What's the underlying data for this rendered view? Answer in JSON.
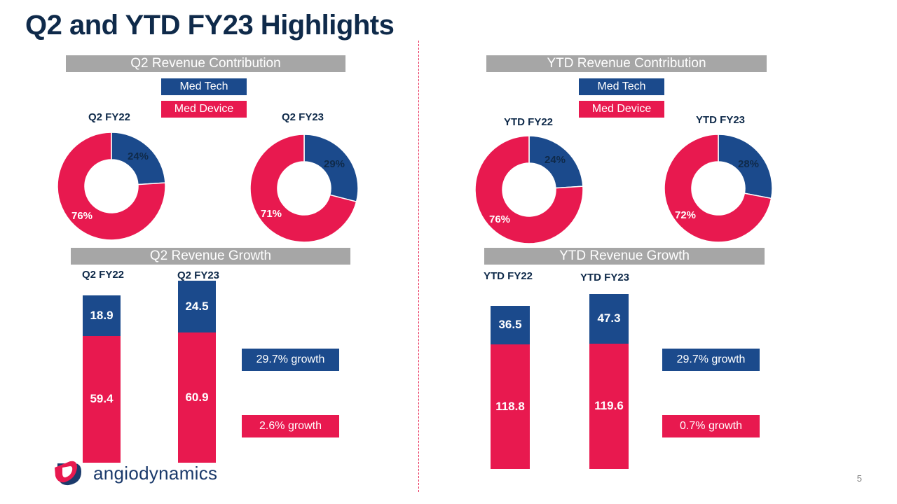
{
  "title": "Q2 and YTD FY23 Highlights",
  "page_number": "5",
  "brand": {
    "name": "angiodynamics"
  },
  "colors": {
    "med_tech": "#1b4a8c",
    "med_device": "#e8194f",
    "header_bg": "#a6a6a6",
    "title": "#0f2a4a"
  },
  "legend": {
    "med_tech": "Med Tech",
    "med_device": "Med Device"
  },
  "chart_data": [
    {
      "type": "pie",
      "title": "Q2 Revenue Contribution",
      "charts": [
        {
          "title": "Q2 FY22",
          "slices": [
            {
              "name": "Med Tech",
              "value": 24,
              "label": "24%"
            },
            {
              "name": "Med Device",
              "value": 76,
              "label": "76%"
            }
          ]
        },
        {
          "title": "Q2 FY23",
          "slices": [
            {
              "name": "Med Tech",
              "value": 29,
              "label": "29%"
            },
            {
              "name": "Med Device",
              "value": 71,
              "label": "71%"
            }
          ]
        }
      ]
    },
    {
      "type": "pie",
      "title": "YTD Revenue Contribution",
      "charts": [
        {
          "title": "YTD FY22",
          "slices": [
            {
              "name": "Med Tech",
              "value": 24,
              "label": "24%"
            },
            {
              "name": "Med Device",
              "value": 76,
              "label": "76%"
            }
          ]
        },
        {
          "title": "YTD FY23",
          "slices": [
            {
              "name": "Med Tech",
              "value": 28,
              "label": "28%"
            },
            {
              "name": "Med Device",
              "value": 72,
              "label": "72%"
            }
          ]
        }
      ]
    },
    {
      "type": "bar",
      "stacked": true,
      "title": "Q2 Revenue Growth",
      "categories": [
        "Q2 FY22",
        "Q2 FY23"
      ],
      "series": [
        {
          "name": "Med Device",
          "values": [
            59.4,
            60.9
          ],
          "labels": [
            "59.4",
            "60.9"
          ]
        },
        {
          "name": "Med Tech",
          "values": [
            18.9,
            24.5
          ],
          "labels": [
            "18.9",
            "24.5"
          ]
        }
      ],
      "growth": {
        "med_tech": "29.7% growth",
        "med_device": "2.6% growth"
      }
    },
    {
      "type": "bar",
      "stacked": true,
      "title": "YTD Revenue Growth",
      "categories": [
        "YTD FY22",
        "YTD FY23"
      ],
      "series": [
        {
          "name": "Med Device",
          "values": [
            118.8,
            119.6
          ],
          "labels": [
            "118.8",
            "119.6"
          ]
        },
        {
          "name": "Med Tech",
          "values": [
            36.5,
            47.3
          ],
          "labels": [
            "36.5",
            "47.3"
          ]
        }
      ],
      "growth": {
        "med_tech": "29.7% growth",
        "med_device": "0.7% growth"
      }
    }
  ]
}
